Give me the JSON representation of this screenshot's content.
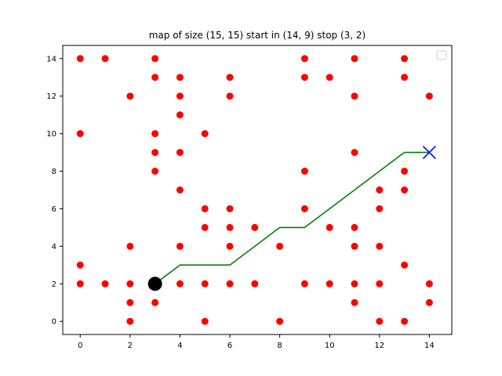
{
  "chart_data": {
    "type": "scatter",
    "title": "map of size (15, 15) start in (14, 9) stop (3, 2)",
    "xlabel": "",
    "ylabel": "",
    "xlim": [
      -0.7,
      14.9
    ],
    "ylim": [
      -0.7,
      14.7
    ],
    "xticks": [
      0,
      2,
      4,
      6,
      8,
      10,
      12,
      14
    ],
    "yticks": [
      0,
      2,
      4,
      6,
      8,
      10,
      12,
      14
    ],
    "grid": false,
    "legend": {
      "placement": "top-right",
      "entries": []
    },
    "colors": {
      "obstacle": "#ff0000",
      "path": "#008000",
      "start": "#0000ff",
      "stop": "#000000"
    },
    "obstacles": {
      "x": [
        0,
        0,
        0,
        0,
        1,
        1,
        2,
        2,
        2,
        2,
        2,
        3,
        3,
        3,
        3,
        3,
        3,
        3,
        4,
        4,
        4,
        4,
        4,
        4,
        4,
        5,
        5,
        5,
        5,
        5,
        6,
        6,
        6,
        6,
        6,
        6,
        7,
        7,
        8,
        8,
        9,
        9,
        9,
        9,
        9,
        10,
        10,
        10,
        11,
        11,
        11,
        11,
        11,
        11,
        11,
        12,
        12,
        12,
        12,
        12,
        13,
        13,
        13,
        13,
        13,
        13,
        14,
        14,
        14
      ],
      "y": [
        14,
        10,
        3,
        2,
        14,
        2,
        12,
        4,
        2,
        1,
        0,
        14,
        13,
        10,
        9,
        8,
        2,
        1,
        13,
        12,
        11,
        9,
        7,
        4,
        2,
        10,
        6,
        5,
        2,
        0,
        13,
        12,
        6,
        5,
        4,
        2,
        5,
        2,
        4,
        0,
        14,
        13,
        8,
        6,
        2,
        13,
        5,
        2,
        14,
        12,
        9,
        5,
        4,
        1,
        2,
        7,
        6,
        4,
        2,
        0,
        14,
        13,
        8,
        7,
        3,
        0,
        12,
        2,
        1
      ]
    },
    "path": {
      "x": [
        14,
        13,
        12,
        11,
        10,
        9,
        8,
        7,
        6,
        5,
        4,
        3
      ],
      "y": [
        9,
        9,
        8,
        7,
        6,
        5,
        5,
        4,
        3,
        3,
        3,
        2
      ]
    },
    "start": {
      "x": 14,
      "y": 9
    },
    "stop": {
      "x": 3,
      "y": 2
    }
  }
}
